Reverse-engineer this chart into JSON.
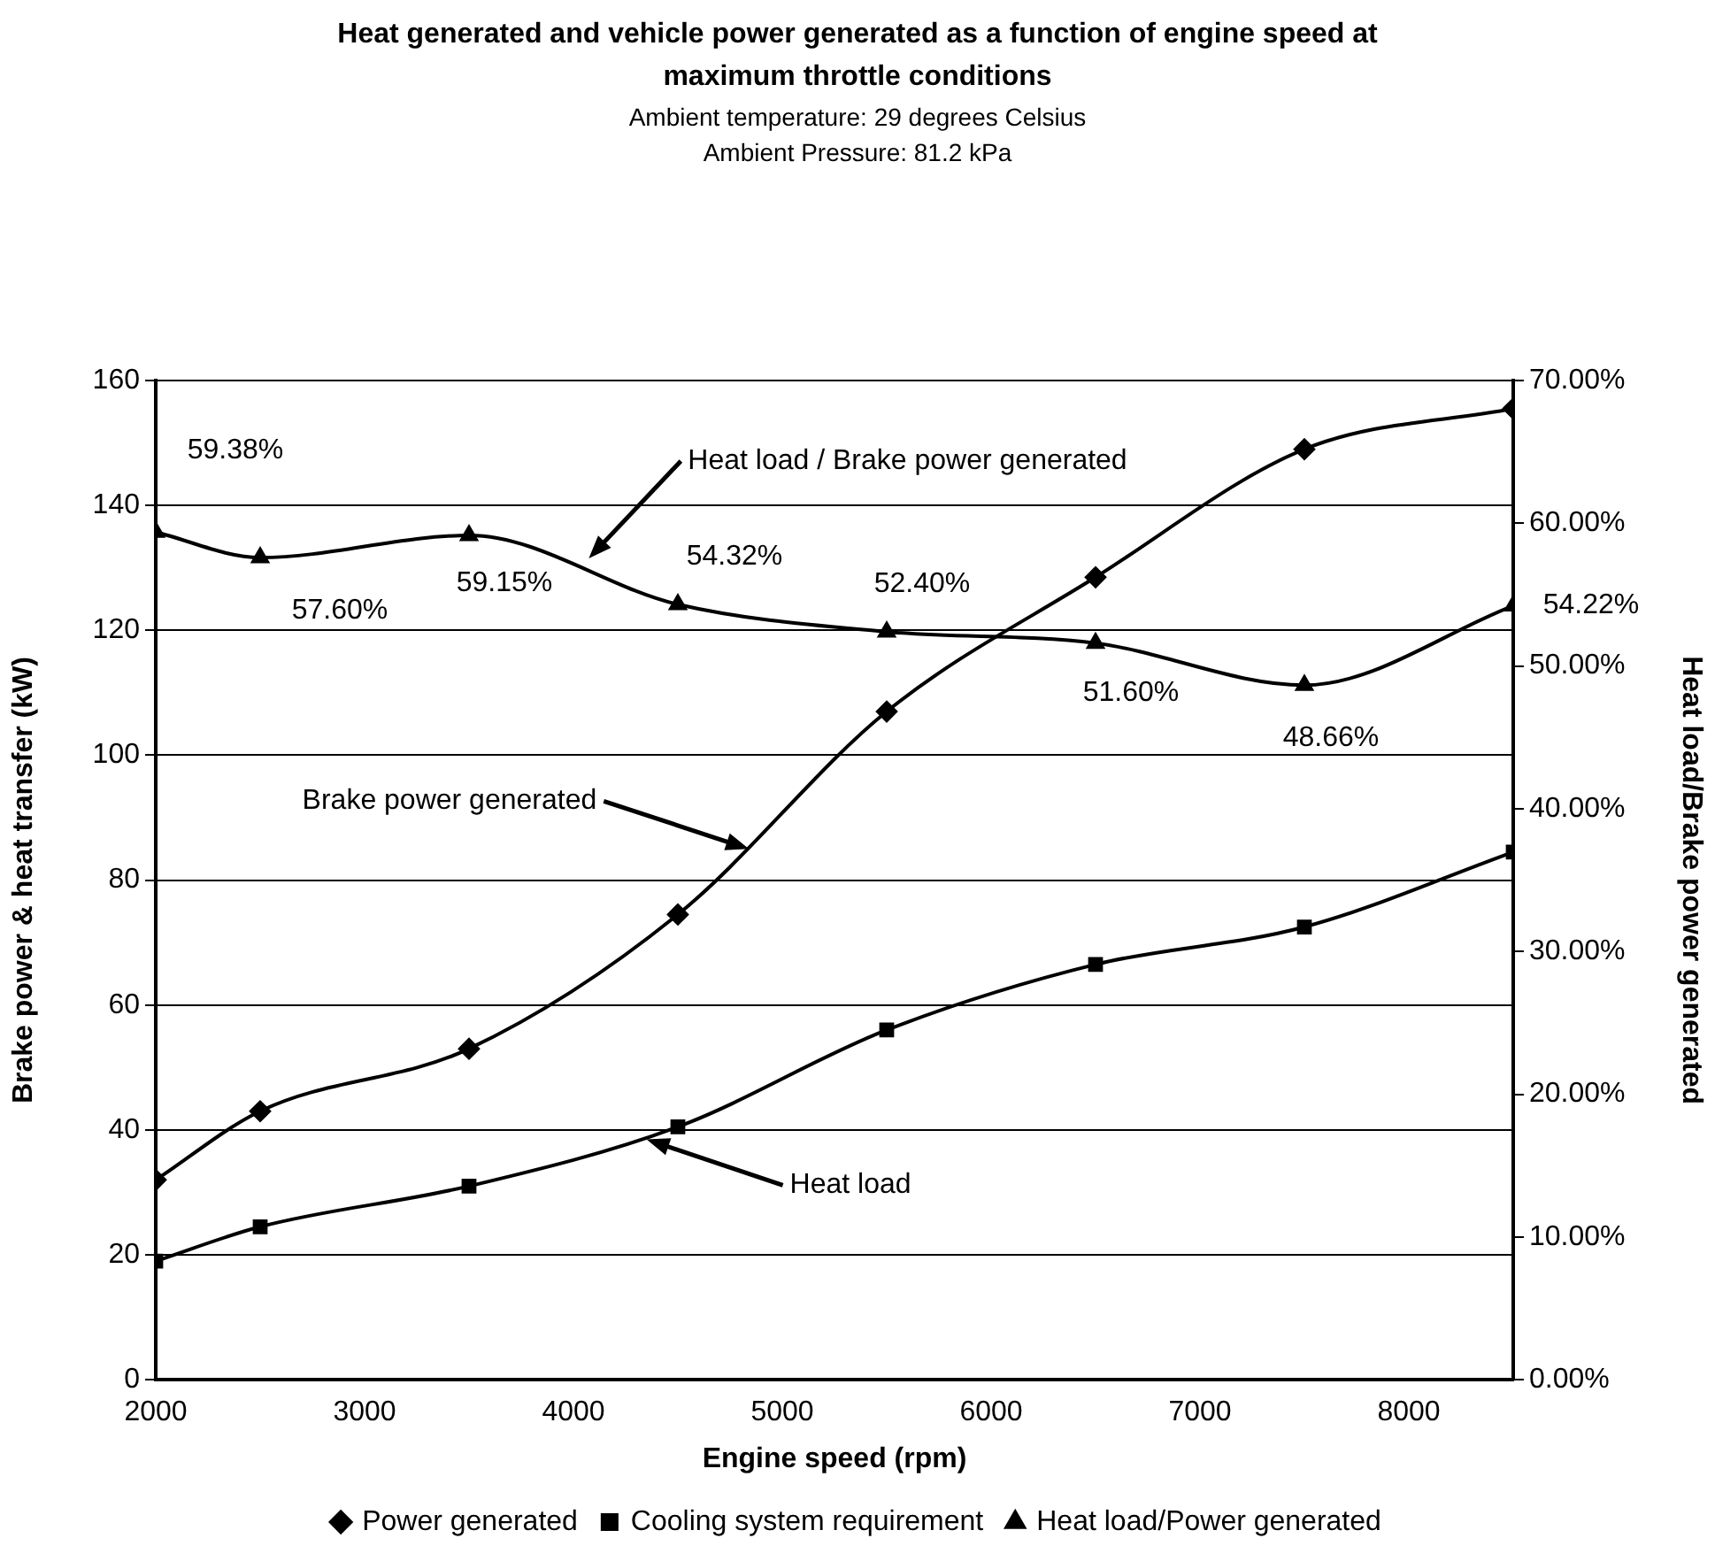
{
  "chart_data": {
    "type": "line",
    "title": "Heat generated and vehicle power generated as a function of engine speed at maximum throttle conditions",
    "subtitle": "Ambient temperature: 29 degrees Celsius\nAmbient Pressure: 81.2 kPa",
    "xlabel": "Engine speed (rpm)",
    "ylabel": "Brake power & heat transfer (kW)",
    "y2label": "Heat load/Brake power generated",
    "x": [
      2000,
      2500,
      3500,
      4500,
      5500,
      6500,
      7500,
      8500
    ],
    "series": [
      {
        "name": "Power generated",
        "color": "#000000",
        "marker": "diamond",
        "values": [
          32,
          43,
          53,
          74.5,
          107,
          128.5,
          149,
          155.5
        ]
      },
      {
        "name": "Cooling system requirement",
        "color": "#000000",
        "marker": "square",
        "values": [
          19,
          24.5,
          31,
          40.5,
          56,
          66.5,
          72.5,
          84.5
        ]
      },
      {
        "name": "Heat load/Power generated",
        "color": "#000000",
        "marker": "triangle",
        "axis": "y2",
        "values": [
          59.38,
          57.6,
          59.15,
          54.32,
          52.4,
          51.6,
          48.66,
          54.22
        ],
        "value_labels": [
          "59.38%",
          "57.60%",
          "59.15%",
          "54.32%",
          "52.40%",
          "51.60%",
          "48.66%",
          "54.22%"
        ]
      }
    ],
    "xlim": [
      2000,
      8500
    ],
    "xticks": [
      2000,
      3000,
      4000,
      5000,
      6000,
      7000,
      8000
    ],
    "ylim": [
      0,
      160
    ],
    "yticks": [
      0,
      20,
      40,
      60,
      80,
      100,
      120,
      140,
      160
    ],
    "y2lim": [
      0,
      70
    ],
    "y2ticks": [
      {
        "value": 0,
        "label": "0.00%"
      },
      {
        "value": 10,
        "label": "10.00%"
      },
      {
        "value": 20,
        "label": "20.00%"
      },
      {
        "value": 30,
        "label": "30.00%"
      },
      {
        "value": 40,
        "label": "40.00%"
      },
      {
        "value": 50,
        "label": "50.00%"
      },
      {
        "value": 60,
        "label": "60.00%"
      },
      {
        "value": 70,
        "label": "70.00%"
      }
    ],
    "annotations": [
      "Heat load / Brake power generated",
      {
        "text": "Brake power generated",
        "x": 4840,
        "y": 85
      },
      {
        "text": "Heat load",
        "x": 4350,
        "y": 38.5
      }
    ],
    "grid": "y",
    "legend": "bottom",
    "line_style": "solid"
  }
}
